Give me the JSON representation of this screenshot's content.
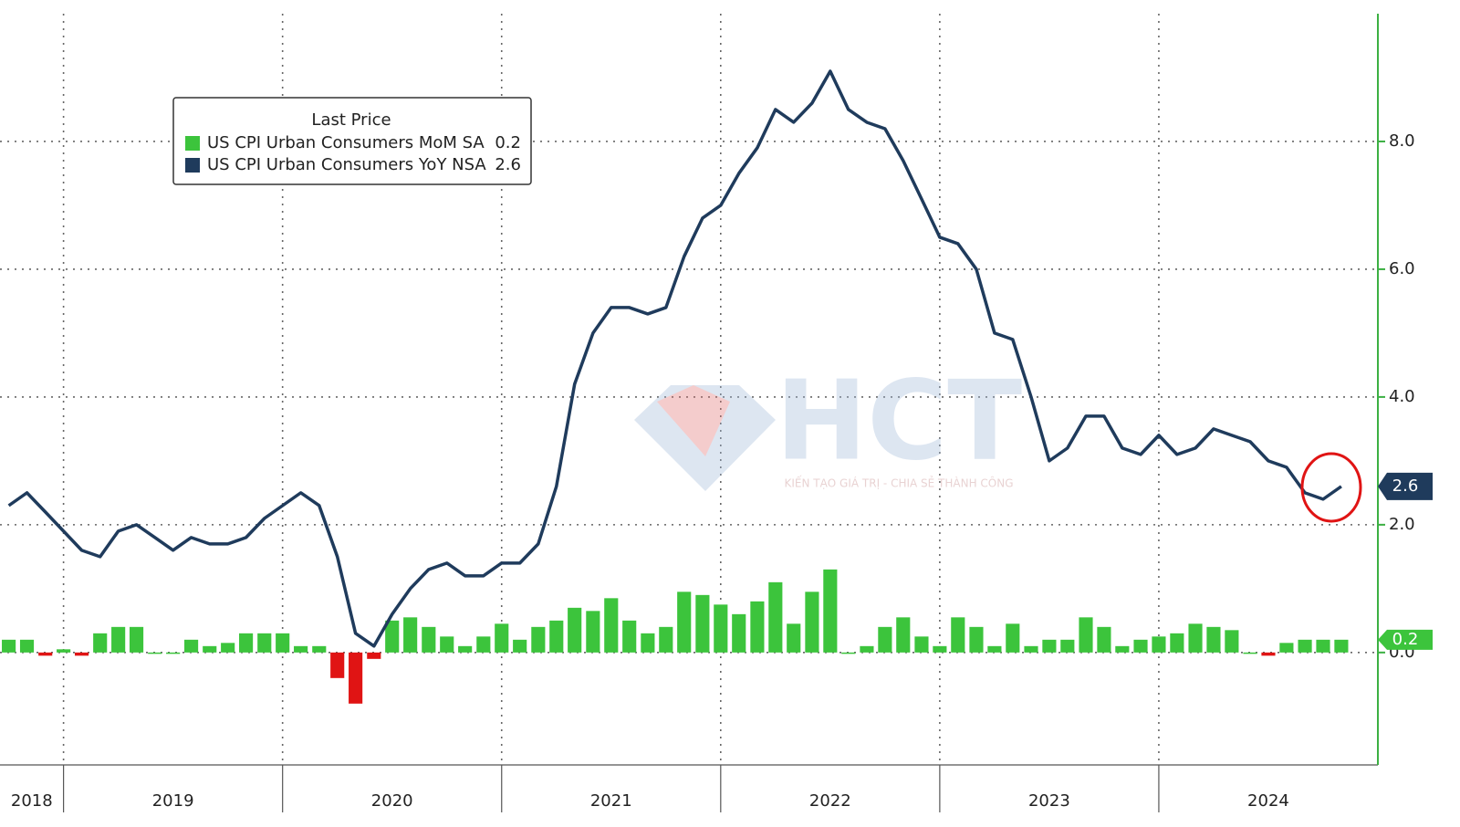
{
  "chart_data": {
    "type": "combo",
    "legend_title": "Last Price",
    "watermark": {
      "text": "HCT",
      "tagline": "KIẾN TẠO GIÁ TRỊ - CHIA SẺ THÀNH CÔNG"
    },
    "x": [
      2018.75,
      2018.833,
      2018.917,
      2019,
      2019.083,
      2019.167,
      2019.25,
      2019.333,
      2019.417,
      2019.5,
      2019.583,
      2019.667,
      2019.75,
      2019.833,
      2019.917,
      2020,
      2020.083,
      2020.167,
      2020.25,
      2020.333,
      2020.417,
      2020.5,
      2020.583,
      2020.667,
      2020.75,
      2020.833,
      2020.917,
      2021,
      2021.083,
      2021.167,
      2021.25,
      2021.333,
      2021.417,
      2021.5,
      2021.583,
      2021.667,
      2021.75,
      2021.833,
      2021.917,
      2022,
      2022.083,
      2022.167,
      2022.25,
      2022.333,
      2022.417,
      2022.5,
      2022.583,
      2022.667,
      2022.75,
      2022.833,
      2022.917,
      2023,
      2023.083,
      2023.167,
      2023.25,
      2023.333,
      2023.417,
      2023.5,
      2023.583,
      2023.667,
      2023.75,
      2023.833,
      2023.917,
      2024,
      2024.083,
      2024.167,
      2024.25,
      2024.333,
      2024.417,
      2024.5,
      2024.583,
      2024.667,
      2024.75,
      2024.833
    ],
    "series": [
      {
        "name": "US CPI Urban Consumers MoM SA",
        "type": "bar",
        "color": "#3cc43c",
        "negative_color": "#e01414",
        "values": [
          0.2,
          0.2,
          -0.05,
          0.05,
          -0.05,
          0.3,
          0.4,
          0.4,
          0.0,
          0.0,
          0.2,
          0.1,
          0.15,
          0.3,
          0.3,
          0.3,
          0.1,
          0.1,
          -0.4,
          -0.8,
          -0.1,
          0.5,
          0.55,
          0.4,
          0.25,
          0.1,
          0.25,
          0.45,
          0.2,
          0.4,
          0.5,
          0.7,
          0.65,
          0.85,
          0.5,
          0.3,
          0.4,
          0.95,
          0.9,
          0.75,
          0.6,
          0.8,
          1.1,
          0.45,
          0.95,
          1.3,
          0.0,
          0.1,
          0.4,
          0.55,
          0.25,
          0.1,
          0.55,
          0.4,
          0.1,
          0.45,
          0.1,
          0.2,
          0.2,
          0.55,
          0.4,
          0.1,
          0.2,
          0.25,
          0.3,
          0.45,
          0.4,
          0.35,
          0.0,
          -0.05,
          0.15,
          0.2,
          0.2,
          0.2
        ]
      },
      {
        "name": "US CPI Urban Consumers YoY NSA",
        "type": "line",
        "color": "#1f3b5c",
        "values": [
          2.3,
          2.5,
          2.2,
          1.9,
          1.6,
          1.5,
          1.9,
          2.0,
          1.8,
          1.6,
          1.8,
          1.7,
          1.7,
          1.8,
          2.1,
          2.3,
          2.5,
          2.3,
          1.5,
          0.3,
          0.1,
          0.6,
          1.0,
          1.3,
          1.4,
          1.2,
          1.2,
          1.4,
          1.4,
          1.7,
          2.6,
          4.2,
          5.0,
          5.4,
          5.4,
          5.3,
          5.4,
          6.2,
          6.8,
          7.0,
          7.5,
          7.9,
          8.5,
          8.3,
          8.6,
          9.1,
          8.5,
          8.3,
          8.2,
          7.7,
          7.1,
          6.5,
          6.4,
          6.0,
          5.0,
          4.9,
          4.0,
          3.0,
          3.2,
          3.7,
          3.7,
          3.2,
          3.1,
          3.4,
          3.1,
          3.2,
          3.5,
          3.4,
          3.3,
          3.0,
          2.9,
          2.5,
          2.4,
          2.6
        ]
      }
    ],
    "xlim": [
      2018.71,
      2025.0
    ],
    "xticks": [
      {
        "value": 2018,
        "label": "2018"
      },
      {
        "value": 2019,
        "label": "2019"
      },
      {
        "value": 2020,
        "label": "2020"
      },
      {
        "value": 2021,
        "label": "2021"
      },
      {
        "value": 2022,
        "label": "2022"
      },
      {
        "value": 2023,
        "label": "2023"
      },
      {
        "value": 2024,
        "label": "2024"
      }
    ],
    "ylim": [
      -1.76,
      10
    ],
    "yticks": [
      {
        "value": 0,
        "label": "0.0"
      },
      {
        "value": 2,
        "label": "2.0"
      },
      {
        "value": 4,
        "label": "4.0"
      },
      {
        "value": 6,
        "label": "6.0"
      },
      {
        "value": 8,
        "label": "8.0"
      }
    ],
    "grid": true,
    "axis_color": "#3cb043"
  }
}
